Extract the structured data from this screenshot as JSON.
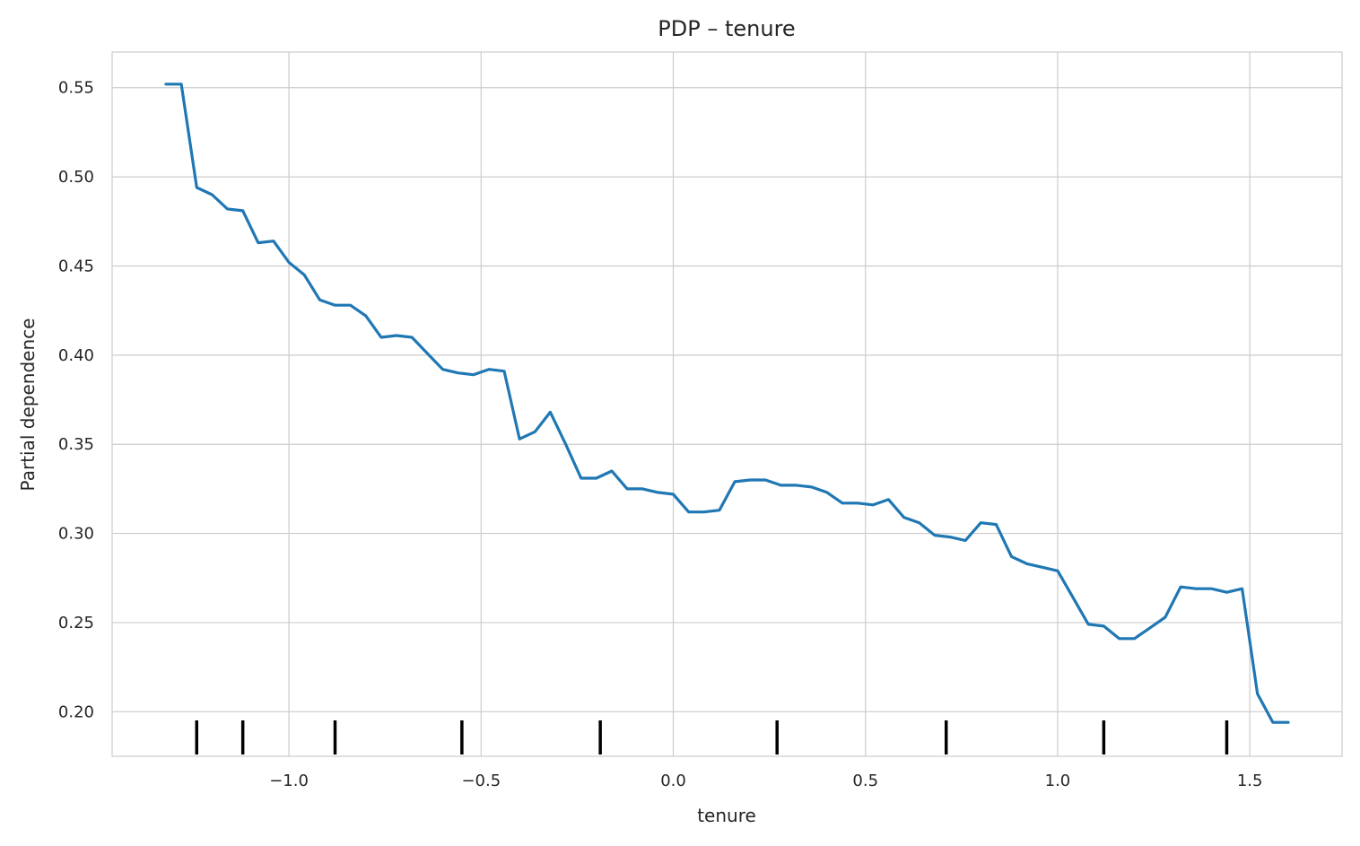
{
  "chart_data": {
    "type": "line",
    "title": "PDP – tenure",
    "xlabel": "tenure",
    "ylabel": "Partial dependence",
    "xlim": [
      -1.46,
      1.74
    ],
    "ylim": [
      0.175,
      0.57
    ],
    "grid": true,
    "x_ticks": [
      -1.0,
      -0.5,
      0.0,
      0.5,
      1.0,
      1.5
    ],
    "x_tick_labels": [
      "−1.0",
      "−0.5",
      "0.0",
      "0.5",
      "1.0",
      "1.5"
    ],
    "y_ticks": [
      0.2,
      0.25,
      0.3,
      0.35,
      0.4,
      0.45,
      0.5,
      0.55
    ],
    "y_tick_labels": [
      "0.20",
      "0.25",
      "0.30",
      "0.35",
      "0.40",
      "0.45",
      "0.50",
      "0.55"
    ],
    "line_color": "#1f77b4",
    "series": [
      {
        "x": [
          -1.32,
          -1.28,
          -1.24,
          -1.2,
          -1.16,
          -1.12,
          -1.08,
          -1.04,
          -1.0,
          -0.96,
          -0.92,
          -0.88,
          -0.84,
          -0.8,
          -0.76,
          -0.72,
          -0.68,
          -0.64,
          -0.6,
          -0.56,
          -0.52,
          -0.48,
          -0.44,
          -0.4,
          -0.36,
          -0.32,
          -0.28,
          -0.24,
          -0.2,
          -0.16,
          -0.12,
          -0.08,
          -0.04,
          0.0,
          0.04,
          0.08,
          0.12,
          0.16,
          0.2,
          0.24,
          0.28,
          0.32,
          0.36,
          0.4,
          0.44,
          0.48,
          0.52,
          0.56,
          0.6,
          0.64,
          0.68,
          0.72,
          0.76,
          0.8,
          0.84,
          0.88,
          0.92,
          0.96,
          1.0,
          1.04,
          1.08,
          1.12,
          1.16,
          1.2,
          1.24,
          1.28,
          1.32,
          1.36,
          1.4,
          1.44,
          1.48,
          1.52,
          1.56,
          1.6
        ],
        "values": [
          0.552,
          0.552,
          0.494,
          0.49,
          0.482,
          0.481,
          0.463,
          0.464,
          0.452,
          0.445,
          0.431,
          0.428,
          0.428,
          0.422,
          0.41,
          0.411,
          0.41,
          0.401,
          0.392,
          0.39,
          0.389,
          0.392,
          0.391,
          0.353,
          0.357,
          0.368,
          0.35,
          0.331,
          0.331,
          0.335,
          0.325,
          0.325,
          0.323,
          0.322,
          0.312,
          0.312,
          0.313,
          0.329,
          0.33,
          0.33,
          0.327,
          0.327,
          0.326,
          0.323,
          0.317,
          0.317,
          0.316,
          0.319,
          0.309,
          0.306,
          0.299,
          0.298,
          0.296,
          0.306,
          0.305,
          0.287,
          0.283,
          0.281,
          0.279,
          0.264,
          0.249,
          0.248,
          0.241,
          0.241,
          0.247,
          0.253,
          0.27,
          0.269,
          0.269,
          0.267,
          0.269,
          0.21,
          0.194,
          0.194
        ]
      }
    ],
    "rug_deciles": [
      -1.24,
      -1.12,
      -0.88,
      -0.55,
      -0.19,
      0.27,
      0.71,
      1.12,
      1.44
    ]
  }
}
